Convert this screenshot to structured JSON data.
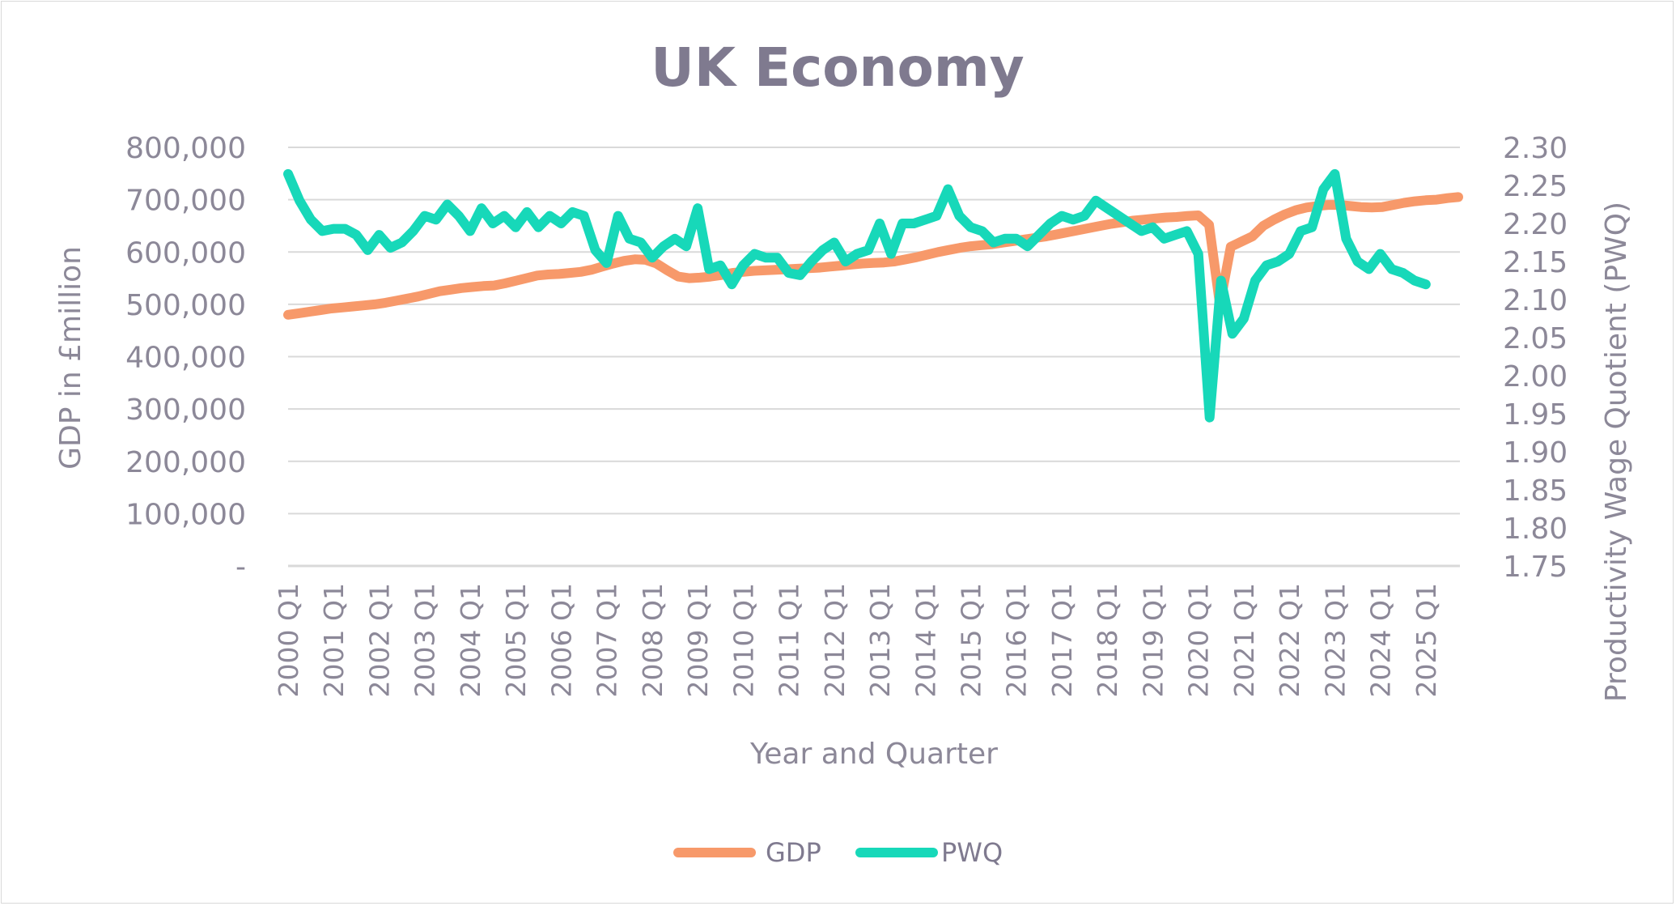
{
  "colors": {
    "gdp": "#f7996a",
    "pwq": "#17d8b9",
    "grid": "#d9d9d9",
    "text": "#8c8898",
    "title": "#7f7a8f"
  },
  "chart_data": {
    "type": "line",
    "title": "UK Economy",
    "xlabel": "Year and Quarter",
    "ylabel_left": "GDP in £million",
    "ylabel_right": "Productivity Wage Quotient (PWQ)",
    "ylim_left": [
      0,
      800000
    ],
    "ylim_right": [
      1.75,
      2.3
    ],
    "left_tick_labels": [
      "-",
      "100,000",
      "200,000",
      "300,000",
      "400,000",
      "500,000",
      "600,000",
      "700,000",
      "800,000"
    ],
    "right_tick_labels": [
      "1.75",
      "1.80",
      "1.85",
      "1.90",
      "1.95",
      "2.00",
      "2.05",
      "2.10",
      "2.15",
      "2.20",
      "2.25",
      "2.30"
    ],
    "x_tick_labels": [
      "2000 Q1",
      "2001 Q1",
      "2002 Q1",
      "2003 Q1",
      "2004 Q1",
      "2005 Q1",
      "2006 Q1",
      "2007 Q1",
      "2008 Q1",
      "2009 Q1",
      "2010 Q1",
      "2011 Q1",
      "2012 Q1",
      "2013 Q1",
      "2014 Q1",
      "2015 Q1",
      "2016 Q1",
      "2017 Q1",
      "2018 Q1",
      "2019 Q1",
      "2020 Q1",
      "2021 Q1",
      "2022 Q1",
      "2023 Q1",
      "2024 Q1",
      "2025 Q1"
    ],
    "grid": true,
    "legend_position": "bottom",
    "series": [
      {
        "name": "GDP",
        "axis": "left",
        "values": [
          480000,
          483000,
          486000,
          489000,
          492000,
          494000,
          496000,
          498000,
          500000,
          503000,
          507000,
          511000,
          515000,
          520000,
          525000,
          528000,
          531000,
          533000,
          535000,
          536000,
          540000,
          545000,
          550000,
          555000,
          557000,
          558000,
          560000,
          562000,
          566000,
          572000,
          578000,
          583000,
          586000,
          585000,
          578000,
          565000,
          553000,
          550000,
          551000,
          553000,
          556000,
          560000,
          562000,
          564000,
          565000,
          566000,
          567000,
          568000,
          569000,
          570000,
          572000,
          574000,
          576000,
          578000,
          579000,
          580000,
          582000,
          586000,
          590000,
          595000,
          600000,
          604000,
          608000,
          611000,
          613000,
          615000,
          618000,
          621000,
          624000,
          627000,
          630000,
          634000,
          638000,
          642000,
          646000,
          650000,
          654000,
          657000,
          660000,
          662000,
          664000,
          666000,
          667000,
          669000,
          670000,
          652000,
          500000,
          610000,
          620000,
          630000,
          650000,
          662000,
          672000,
          680000,
          685000,
          688000,
          690000,
          690000,
          688000,
          686000,
          685000,
          686000,
          690000,
          694000,
          697000,
          699000,
          700000,
          703000,
          705000
        ],
        "samples_per_year": 4.2
      },
      {
        "name": "PWQ",
        "axis": "right",
        "values": [
          2.265,
          2.23,
          2.205,
          2.19,
          2.193,
          2.193,
          2.185,
          2.165,
          2.185,
          2.168,
          2.175,
          2.19,
          2.21,
          2.205,
          2.225,
          2.21,
          2.19,
          2.22,
          2.2,
          2.21,
          2.195,
          2.215,
          2.195,
          2.21,
          2.2,
          2.215,
          2.21,
          2.165,
          2.148,
          2.21,
          2.18,
          2.175,
          2.155,
          2.17,
          2.18,
          2.17,
          2.22,
          2.14,
          2.145,
          2.12,
          2.145,
          2.16,
          2.155,
          2.155,
          2.135,
          2.132,
          2.15,
          2.165,
          2.175,
          2.15,
          2.16,
          2.165,
          2.2,
          2.16,
          2.2,
          2.2,
          2.205,
          2.21,
          2.245,
          2.21,
          2.195,
          2.19,
          2.175,
          2.18,
          2.18,
          2.17,
          2.185,
          2.2,
          2.21,
          2.205,
          2.21,
          2.23,
          2.22,
          2.21,
          2.2,
          2.19,
          2.195,
          2.18,
          2.185,
          2.19,
          2.16,
          1.945,
          2.125,
          2.055,
          2.075,
          2.125,
          2.145,
          2.15,
          2.16,
          2.19,
          2.195,
          2.245,
          2.265,
          2.18,
          2.15,
          2.14,
          2.16,
          2.14,
          2.135,
          2.125,
          2.12
        ],
        "samples_per_year": 4.0
      }
    ]
  }
}
